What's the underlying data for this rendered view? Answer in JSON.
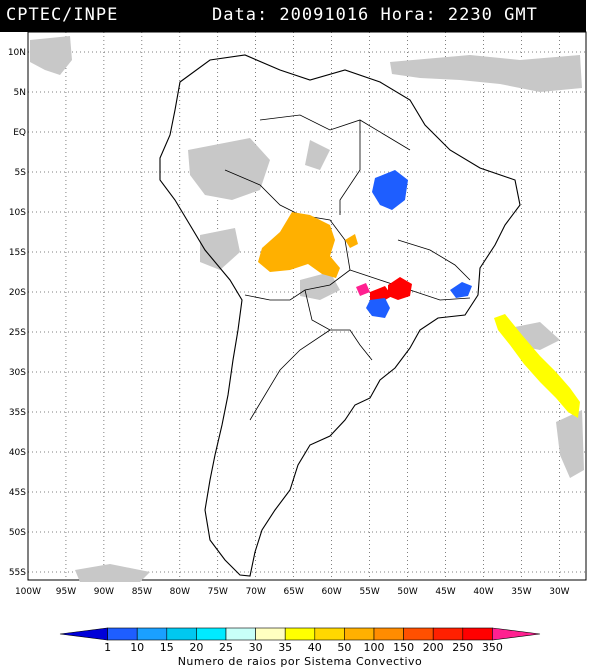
{
  "header": {
    "source": "CPTEC/INPE",
    "datetime": "Data: 20091016 Hora: 2230 GMT"
  },
  "axes": {
    "lat_labels": [
      "10N",
      "5N",
      "EQ",
      "5S",
      "10S",
      "15S",
      "20S",
      "25S",
      "30S",
      "35S",
      "40S",
      "45S",
      "50S",
      "55S"
    ],
    "lat_values": [
      10,
      5,
      0,
      -5,
      -10,
      -15,
      -20,
      -25,
      -30,
      -35,
      -40,
      -45,
      -50,
      -55
    ],
    "lon_labels": [
      "100W",
      "95W",
      "90W",
      "85W",
      "80W",
      "75W",
      "70W",
      "65W",
      "60W",
      "55W",
      "50W",
      "45W",
      "40W",
      "35W",
      "30W"
    ],
    "lon_values": [
      -100,
      -95,
      -90,
      -85,
      -80,
      -75,
      -70,
      -65,
      -60,
      -55,
      -50,
      -45,
      -40,
      -35,
      -30
    ],
    "lon_range": [
      -100,
      -26.5
    ],
    "lat_range": [
      -56,
      12.5
    ],
    "grid": "dotted"
  },
  "legend": {
    "labels": [
      "1",
      "10",
      "15",
      "20",
      "25",
      "30",
      "35",
      "40",
      "50",
      "100",
      "150",
      "200",
      "250",
      "350"
    ],
    "colors": [
      "#0000d8",
      "#1e5eff",
      "#1aa0ff",
      "#00c8f0",
      "#00eaff",
      "#c8fff8",
      "#ffffc0",
      "#ffff00",
      "#ffd800",
      "#ffb000",
      "#ff8c00",
      "#ff5000",
      "#ff2000",
      "#ff0000",
      "#ff2090"
    ],
    "caption": "Numero de raios por Sistema Convectivo"
  },
  "colors": {
    "cloud": "#c8c8c8",
    "coast": "#000000"
  },
  "systems": [
    {
      "id": "amazon-north",
      "color": "#1e5eff"
    },
    {
      "id": "bolivia-mt",
      "color": "#ffb000"
    },
    {
      "id": "sp-red",
      "color": "#ff0000"
    },
    {
      "id": "sp-magenta",
      "color": "#ff2090"
    },
    {
      "id": "pr-blue",
      "color": "#1e5eff"
    },
    {
      "id": "mg-blue",
      "color": "#1e5eff"
    },
    {
      "id": "atlantic",
      "color": "#ffff00"
    }
  ]
}
